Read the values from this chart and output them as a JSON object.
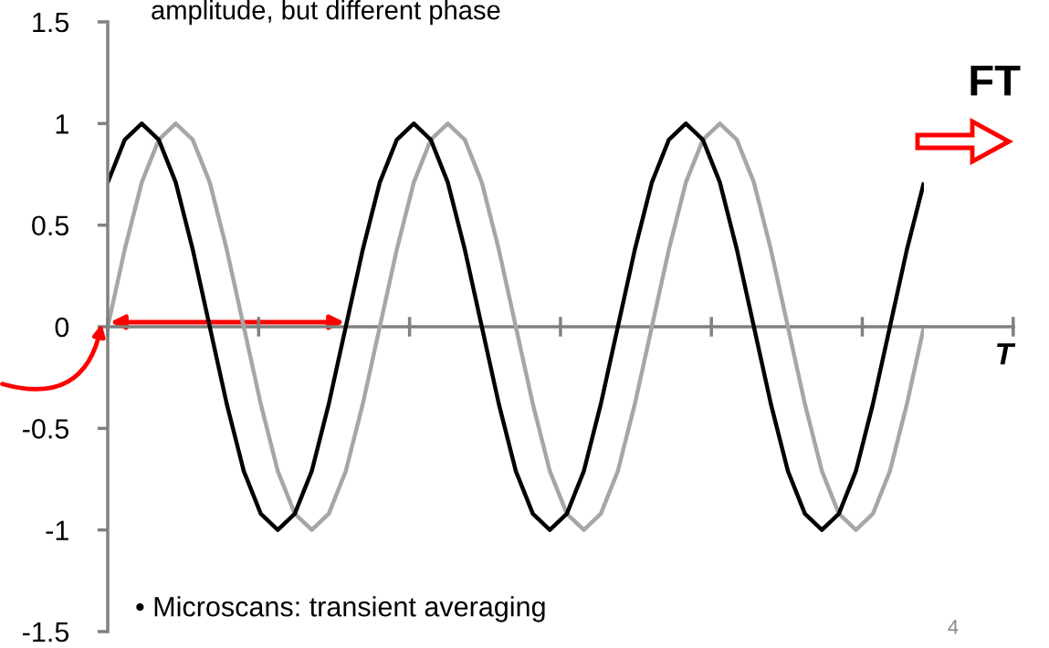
{
  "chart_data": {
    "type": "line",
    "title": "amplitude, but different phase",
    "xlabel": "T",
    "categories": [
      null,
      null,
      null,
      null,
      null,
      null,
      null,
      null,
      null,
      null,
      null,
      null,
      null,
      null,
      null,
      null,
      null,
      null,
      null,
      null,
      null,
      null,
      null,
      null,
      null,
      null,
      null,
      null,
      null,
      null,
      null,
      null,
      null,
      null,
      null,
      null,
      null,
      null,
      null,
      null,
      null,
      null,
      null,
      null,
      null,
      null,
      null,
      null,
      null
    ],
    "series": [
      {
        "color": "#a6a6a6",
        "values": [
          0,
          0.38,
          0.71,
          0.92,
          1,
          0.92,
          0.71,
          0.38,
          0,
          -0.38,
          -0.71,
          -0.92,
          -1,
          -0.92,
          -0.71,
          -0.38,
          0,
          0.38,
          0.71,
          0.92,
          1,
          0.92,
          0.71,
          0.38,
          0,
          -0.38,
          -0.71,
          -0.92,
          -1,
          -0.92,
          -0.71,
          -0.38,
          0,
          0.38,
          0.71,
          0.92,
          1,
          0.92,
          0.71,
          0.38,
          0,
          -0.38,
          -0.71,
          -0.92,
          -1,
          -0.92,
          -0.71,
          -0.38,
          0
        ]
      },
      {
        "color": "#000000",
        "values": [
          0.71,
          0.92,
          1,
          0.92,
          0.71,
          0.38,
          0,
          -0.38,
          -0.71,
          -0.92,
          -1,
          -0.92,
          -0.71,
          -0.38,
          0,
          0.38,
          0.71,
          0.92,
          1,
          0.92,
          0.71,
          0.38,
          0,
          -0.38,
          -0.71,
          -0.92,
          -1,
          -0.92,
          -0.71,
          -0.38,
          0,
          0.38,
          0.71,
          0.92,
          1,
          0.92,
          0.71,
          0.38,
          0,
          -0.38,
          -0.71,
          -0.92,
          -1,
          -0.92,
          -0.71,
          -0.38,
          0,
          0.38,
          0.71
        ]
      }
    ],
    "ylim": [
      -1.5,
      1.5
    ],
    "yticks": [
      -1.5,
      -1,
      -0.5,
      0,
      0.5,
      1,
      1.5
    ],
    "ref_lines": [
      {
        "axis": "y",
        "value": 0,
        "color": "#808080",
        "line_style": "solid"
      }
    ],
    "tick_labels": "y",
    "grid": false,
    "legend": false,
    "marker": "none",
    "line_style": "solid",
    "annotations": [
      "FT",
      "• Microscans: transient averaging",
      "4"
    ]
  }
}
